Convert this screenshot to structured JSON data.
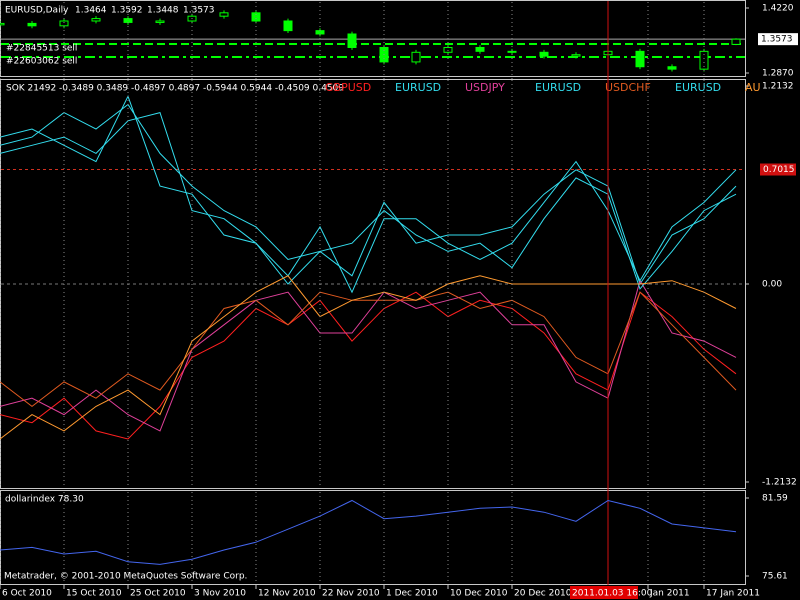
{
  "chart_data": [
    {
      "type": "candlestick",
      "title": "EURUSD,Daily",
      "header_values": [
        1.3464,
        1.3592,
        1.3448,
        1.3573
      ],
      "x": [
        0,
        4,
        8,
        12,
        16,
        20,
        24,
        28,
        32,
        36,
        40,
        44,
        48,
        52,
        56,
        60,
        64,
        68,
        72,
        76,
        80,
        84,
        88,
        92
      ],
      "open": [
        1.387,
        1.39,
        1.385,
        1.395,
        1.4,
        1.392,
        1.395,
        1.405,
        1.412,
        1.395,
        1.375,
        1.368,
        1.34,
        1.31,
        1.33,
        1.34,
        1.332,
        1.33,
        1.322,
        1.325,
        1.332,
        1.3,
        1.295,
        1.3464
      ],
      "high": [
        1.395,
        1.395,
        1.4,
        1.405,
        1.405,
        1.4,
        1.41,
        1.417,
        1.417,
        1.4,
        1.38,
        1.373,
        1.345,
        1.335,
        1.345,
        1.345,
        1.337,
        1.335,
        1.33,
        1.337,
        1.337,
        1.305,
        1.337,
        1.3592
      ],
      "low": [
        1.382,
        1.38,
        1.38,
        1.39,
        1.387,
        1.387,
        1.39,
        1.4,
        1.39,
        1.37,
        1.363,
        1.335,
        1.305,
        1.305,
        1.325,
        1.327,
        1.325,
        1.317,
        1.317,
        1.32,
        1.295,
        1.29,
        1.29,
        1.3448
      ],
      "close": [
        1.39,
        1.385,
        1.395,
        1.4,
        1.392,
        1.395,
        1.405,
        1.412,
        1.395,
        1.375,
        1.368,
        1.34,
        1.31,
        1.33,
        1.34,
        1.332,
        1.33,
        1.322,
        1.325,
        1.332,
        1.3,
        1.295,
        1.332,
        1.3573
      ],
      "color": "#00ff00",
      "xlim": [
        0,
        93
      ],
      "ylim": [
        1.287,
        1.422
      ],
      "yticks": [
        {
          "value": 1.422,
          "label": "1.4220"
        },
        {
          "value": 1.287,
          "label": "1.2870"
        }
      ],
      "last_price": 1.3573,
      "orders": [
        {
          "label": "#22845513 sell",
          "value": 1.3472
        },
        {
          "label": "#22603062 sell",
          "value": 1.3202
        }
      ]
    },
    {
      "type": "line",
      "title": "SOK 21492 -0.3489 0.3489 -0.4897 0.4897 -0.5944 0.5944 -0.4509 0.4509",
      "x": [
        0,
        4,
        8,
        12,
        16,
        20,
        24,
        28,
        32,
        36,
        40,
        44,
        48,
        52,
        56,
        60,
        64,
        68,
        72,
        76,
        80,
        84,
        88,
        92
      ],
      "xlim": [
        0,
        93
      ],
      "ylim": [
        -1.2132,
        1.2132
      ],
      "yticks": [
        1.2132,
        {
          "value": 0,
          "label": "0.00"
        },
        -1.2132
      ],
      "level": 0.7015,
      "series": [
        {
          "name": "GBPUSD",
          "color": "#ff2020",
          "values": [
            -0.8,
            -0.85,
            -0.7,
            -0.9,
            -0.95,
            -0.75,
            -0.45,
            -0.35,
            -0.15,
            -0.25,
            -0.1,
            -0.35,
            -0.15,
            -0.05,
            -0.2,
            -0.1,
            -0.15,
            -0.3,
            -0.55,
            -0.65,
            -0.05,
            -0.2,
            -0.4,
            -0.55
          ]
        },
        {
          "name": "EURUSD",
          "color": "#33ddee",
          "values": [
            0.85,
            0.9,
            1.05,
            0.95,
            1.1,
            0.8,
            0.6,
            0.45,
            0.35,
            0.15,
            0.2,
            0.05,
            0.5,
            0.25,
            0.3,
            0.3,
            0.35,
            0.55,
            0.7,
            0.6,
            0.0,
            0.3,
            0.4,
            0.6
          ]
        },
        {
          "name": "USDJPY",
          "color": "#e0409a",
          "values": [
            -0.75,
            -0.7,
            -0.8,
            -0.65,
            -0.8,
            -0.9,
            -0.4,
            -0.25,
            -0.1,
            -0.05,
            -0.3,
            -0.3,
            -0.05,
            -0.15,
            -0.1,
            -0.05,
            -0.25,
            -0.25,
            -0.6,
            -0.7,
            0.02,
            -0.3,
            -0.35,
            -0.45
          ]
        },
        {
          "name": "EURUSD",
          "color": "#33ddee",
          "values": [
            0.8,
            0.85,
            0.9,
            0.8,
            1.0,
            1.05,
            0.45,
            0.4,
            0.25,
            0.0,
            0.2,
            0.25,
            0.45,
            0.3,
            0.2,
            0.25,
            0.1,
            0.4,
            0.65,
            0.55,
            -0.03,
            0.2,
            0.45,
            0.55
          ]
        },
        {
          "name": "USDCHF",
          "color": "#e05a20",
          "values": [
            -0.6,
            -0.75,
            -0.6,
            -0.7,
            -0.55,
            -0.65,
            -0.4,
            -0.15,
            -0.1,
            -0.25,
            -0.05,
            -0.1,
            -0.1,
            -0.1,
            -0.05,
            -0.15,
            -0.1,
            -0.2,
            -0.45,
            -0.55,
            -0.05,
            -0.25,
            -0.45,
            -0.65
          ]
        },
        {
          "name": "EURUSD",
          "color": "#33ddee",
          "values": [
            0.9,
            0.95,
            0.85,
            0.75,
            1.15,
            0.6,
            0.55,
            0.3,
            0.25,
            0.05,
            0.35,
            -0.05,
            0.4,
            0.4,
            0.25,
            0.15,
            0.25,
            0.5,
            0.75,
            0.45,
            0.02,
            0.35,
            0.5,
            0.7
          ]
        },
        {
          "name": "AU",
          "color": "#ff9a30",
          "values": [
            -0.95,
            -0.8,
            -0.9,
            -0.75,
            -0.65,
            -0.8,
            -0.35,
            -0.2,
            -0.05,
            0.05,
            -0.2,
            -0.1,
            -0.05,
            -0.1,
            0.0,
            0.05,
            0.0,
            0.0,
            0.0,
            0.0,
            0.0,
            0.02,
            -0.05,
            -0.15
          ]
        }
      ]
    },
    {
      "type": "line",
      "title": "dollarindex 78.30",
      "note": "Metatrader, © 2001-2010 MetaQuotes Software Corp.",
      "x": [
        0,
        4,
        8,
        12,
        16,
        20,
        24,
        28,
        32,
        36,
        40,
        44,
        48,
        52,
        56,
        60,
        64,
        68,
        72,
        76,
        80,
        84,
        88,
        92
      ],
      "xlim": [
        0,
        93
      ],
      "ylim": [
        75.61,
        81.59
      ],
      "yticks": [
        81.59,
        75.61
      ],
      "xticks": [
        {
          "value": 0,
          "label": "6 Oct 2010"
        },
        {
          "value": 8,
          "label": "15 Oct 2010"
        },
        {
          "value": 16,
          "label": "25 Oct 2010"
        },
        {
          "value": 24,
          "label": "3 Nov 2010"
        },
        {
          "value": 32,
          "label": "12 Nov 2010"
        },
        {
          "value": 40,
          "label": "22 Nov 2010"
        },
        {
          "value": 48,
          "label": "1 Dec 2010"
        },
        {
          "value": 56,
          "label": "10 Dec 2010"
        },
        {
          "value": 64,
          "label": "20 Dec 2010"
        },
        {
          "value": 81,
          "label": "Jan 2011"
        },
        {
          "value": 88,
          "label": "17 Jan 2011"
        }
      ],
      "cursor": {
        "value": 76,
        "label": "2011.01.03 16:00"
      },
      "series": [
        {
          "color": "#4466ee",
          "values": [
            77.6,
            77.8,
            77.3,
            77.5,
            76.7,
            76.5,
            76.9,
            77.6,
            78.2,
            79.2,
            80.2,
            81.4,
            80.0,
            80.2,
            80.5,
            80.8,
            80.9,
            80.5,
            79.8,
            81.4,
            80.8,
            79.6,
            79.3,
            79.0
          ]
        }
      ]
    }
  ]
}
